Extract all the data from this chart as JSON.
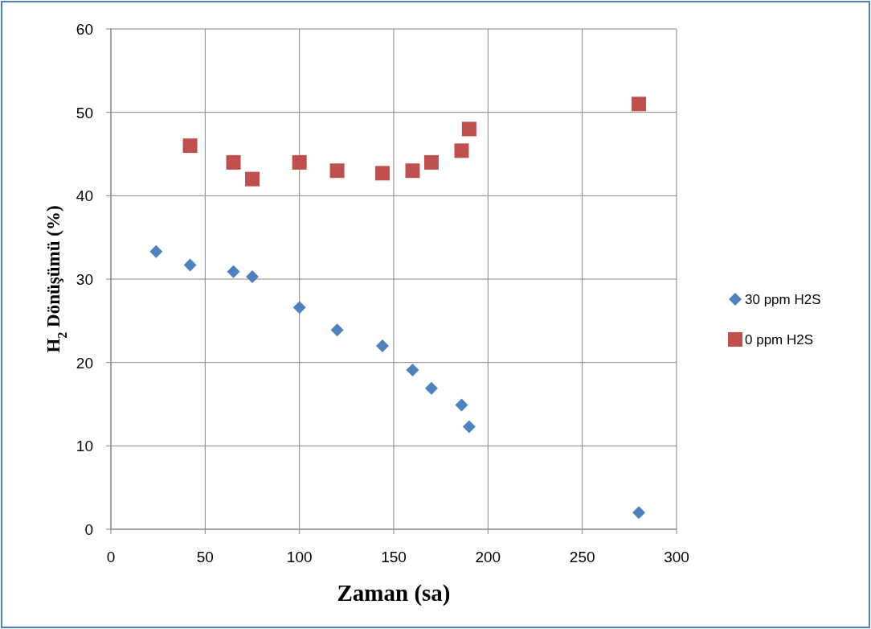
{
  "chart_data": {
    "type": "scatter",
    "xlabel": "Zaman (sa)",
    "ylabel": "H$_{2}$ Dönüşümü (%)",
    "xlim": [
      0,
      300
    ],
    "xticks": [
      0,
      50,
      100,
      150,
      200,
      250,
      300
    ],
    "ylim": [
      0,
      60
    ],
    "yticks": [
      0,
      10,
      20,
      30,
      40,
      50,
      60
    ],
    "grid": true,
    "legend": "right",
    "series": [
      {
        "name": "30 ppm H2S",
        "color": "#4f81bd",
        "marker": "diamond",
        "x": [
          24,
          42,
          65,
          75,
          100,
          120,
          144,
          160,
          170,
          186,
          190,
          280
        ],
        "values": [
          33.3,
          31.7,
          30.9,
          30.3,
          26.6,
          23.9,
          22,
          19.1,
          16.9,
          14.9,
          12.3,
          2
        ]
      },
      {
        "name": "0 ppm H2S",
        "color": "#c0504d",
        "marker": "square",
        "x": [
          42,
          65,
          75,
          100,
          120,
          144,
          160,
          170,
          186,
          190,
          280
        ],
        "values": [
          46,
          44,
          42,
          44,
          43,
          42.7,
          43,
          44,
          45.4,
          48,
          51
        ]
      }
    ]
  }
}
